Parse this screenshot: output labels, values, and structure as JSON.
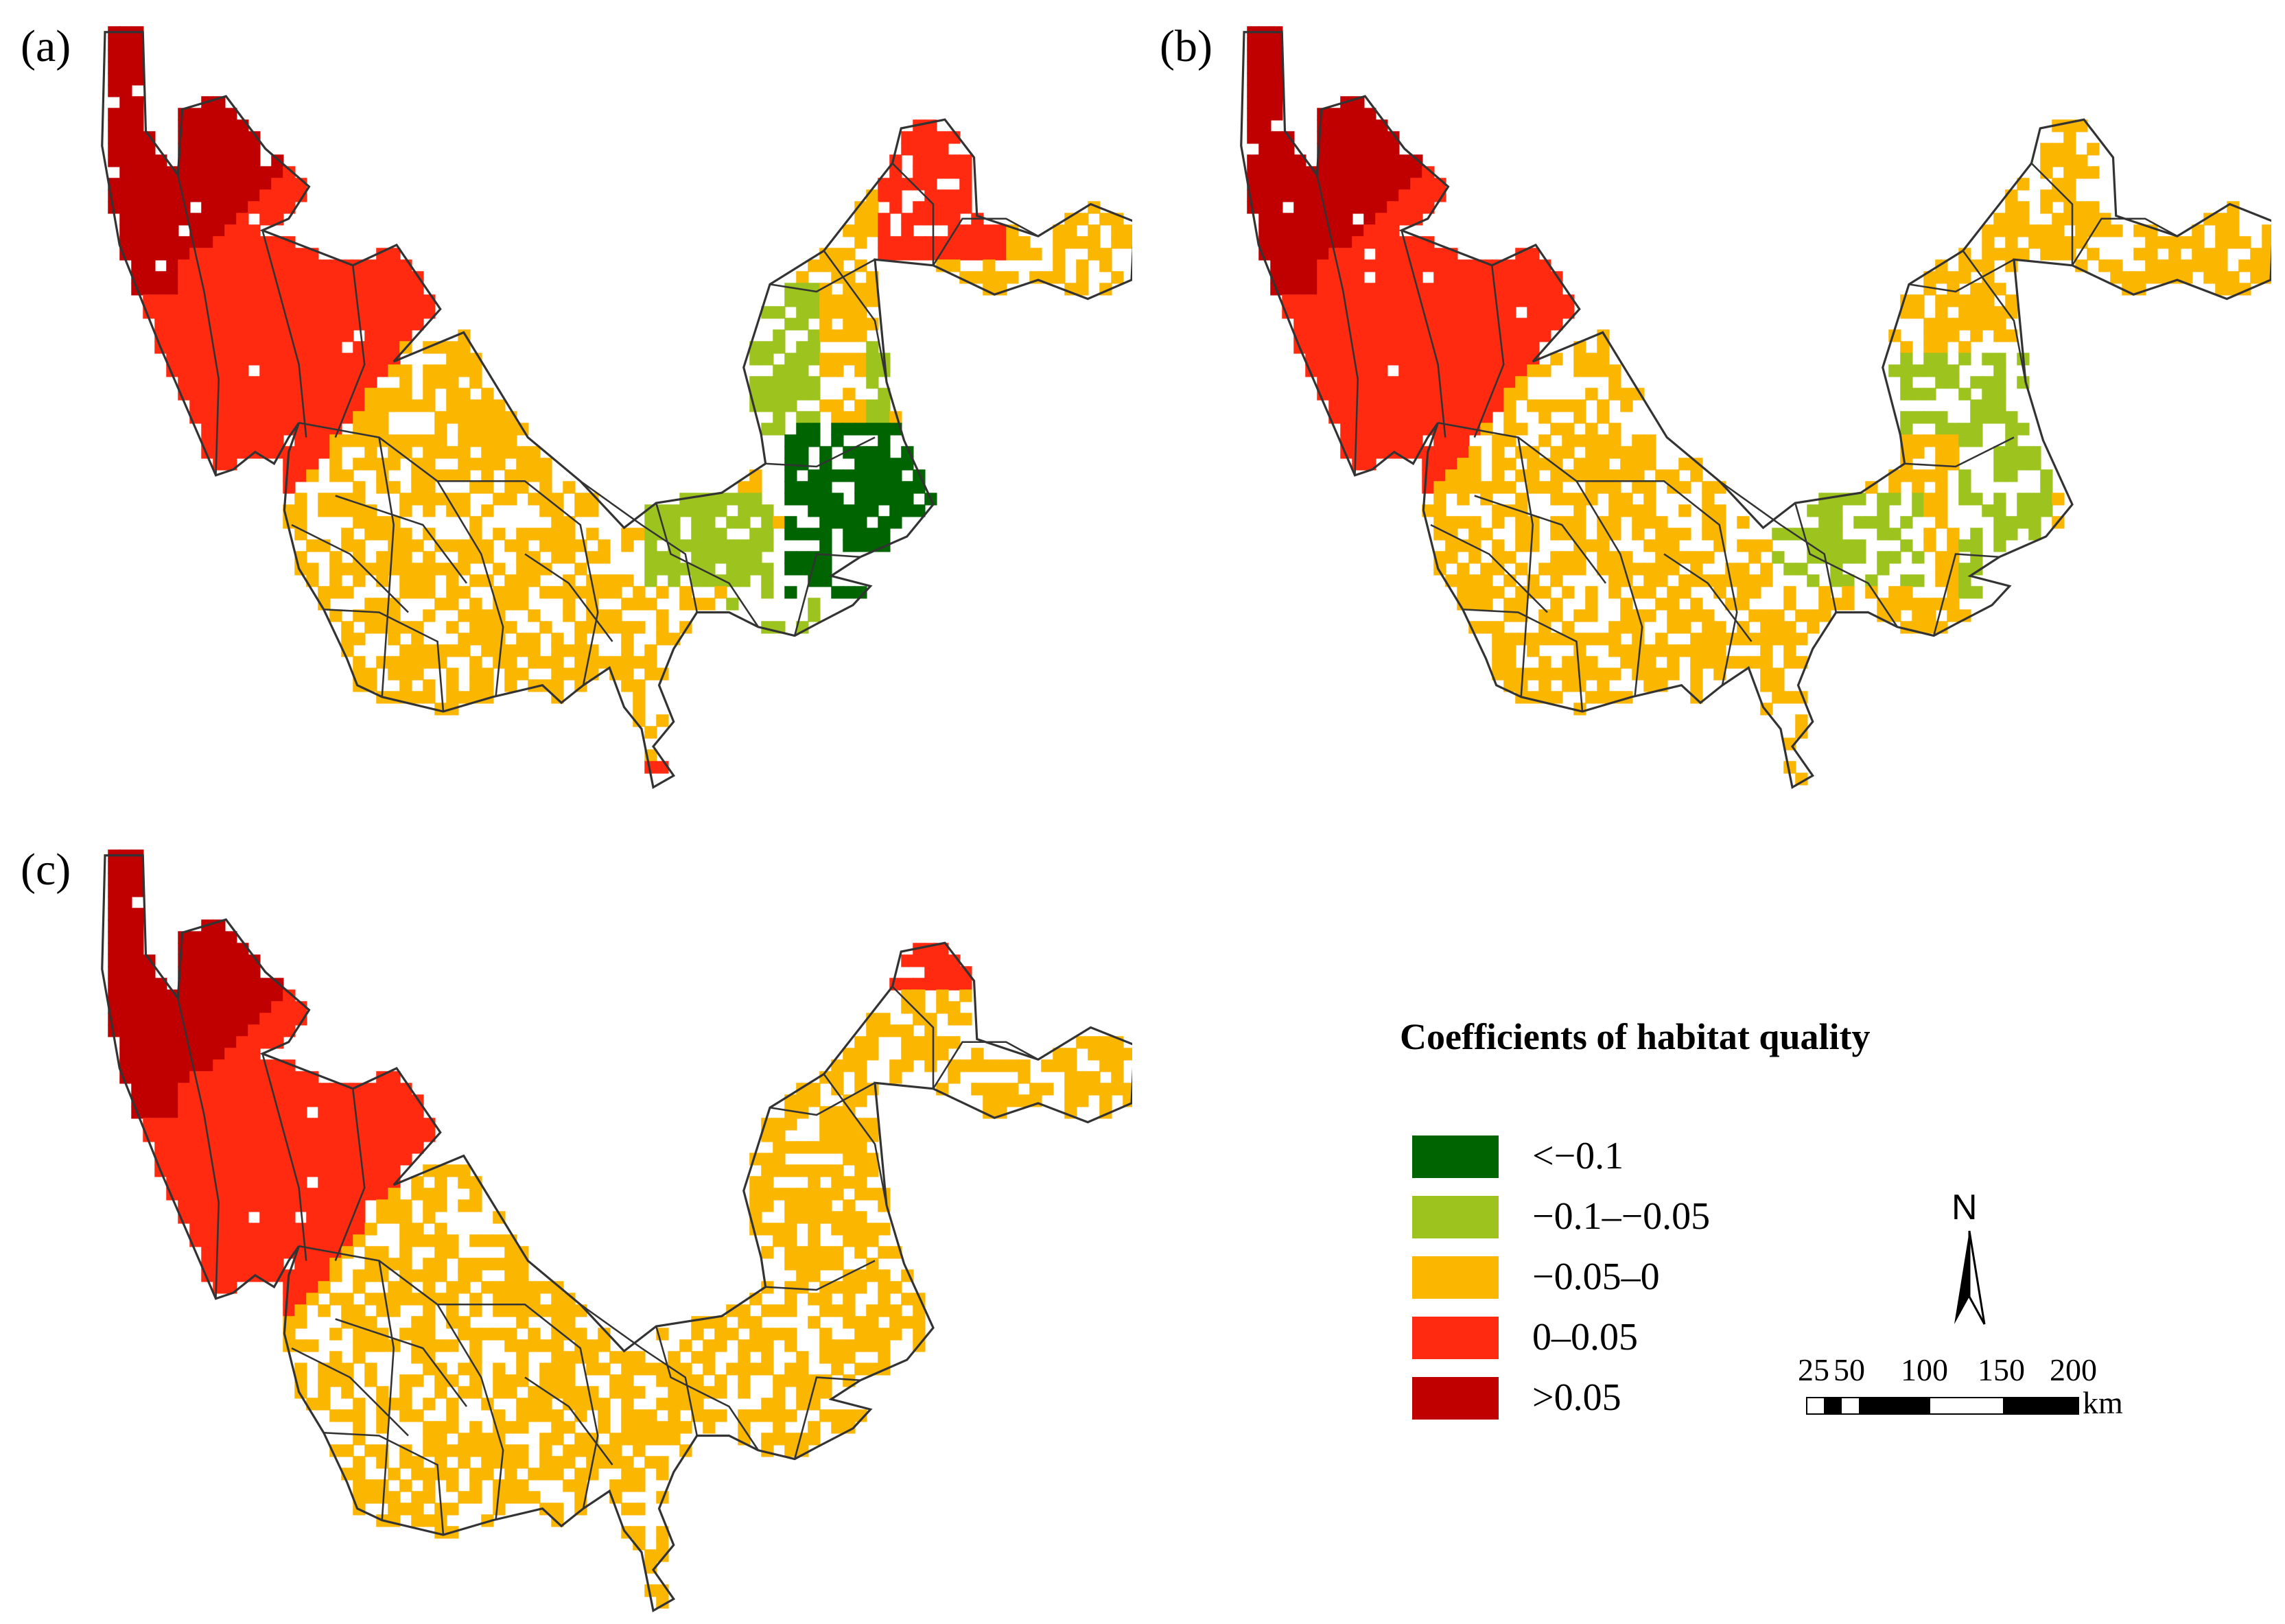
{
  "panels": [
    {
      "label": "(a)",
      "id": "a"
    },
    {
      "label": "(b)",
      "id": "b"
    },
    {
      "label": "(c)",
      "id": "c"
    }
  ],
  "legend": {
    "title": "Coefficients of habitat quality",
    "items": [
      {
        "label": "<−0.1",
        "color": "#006400"
      },
      {
        "label": "−0.1–−0.05",
        "color": "#9dc41e"
      },
      {
        "label": "−0.05–0",
        "color": "#fbb600"
      },
      {
        "label": "0–0.05",
        "color": "#ff2a10"
      },
      {
        "label": ">0.05",
        "color": "#c00000"
      }
    ]
  },
  "north_arrow": {
    "label": "N"
  },
  "scale_bar": {
    "ticks": [
      "25",
      "50",
      "100",
      "150",
      "200"
    ],
    "unit": "km"
  },
  "colors": {
    "boundary": "#333333",
    "background": "#ffffff"
  }
}
